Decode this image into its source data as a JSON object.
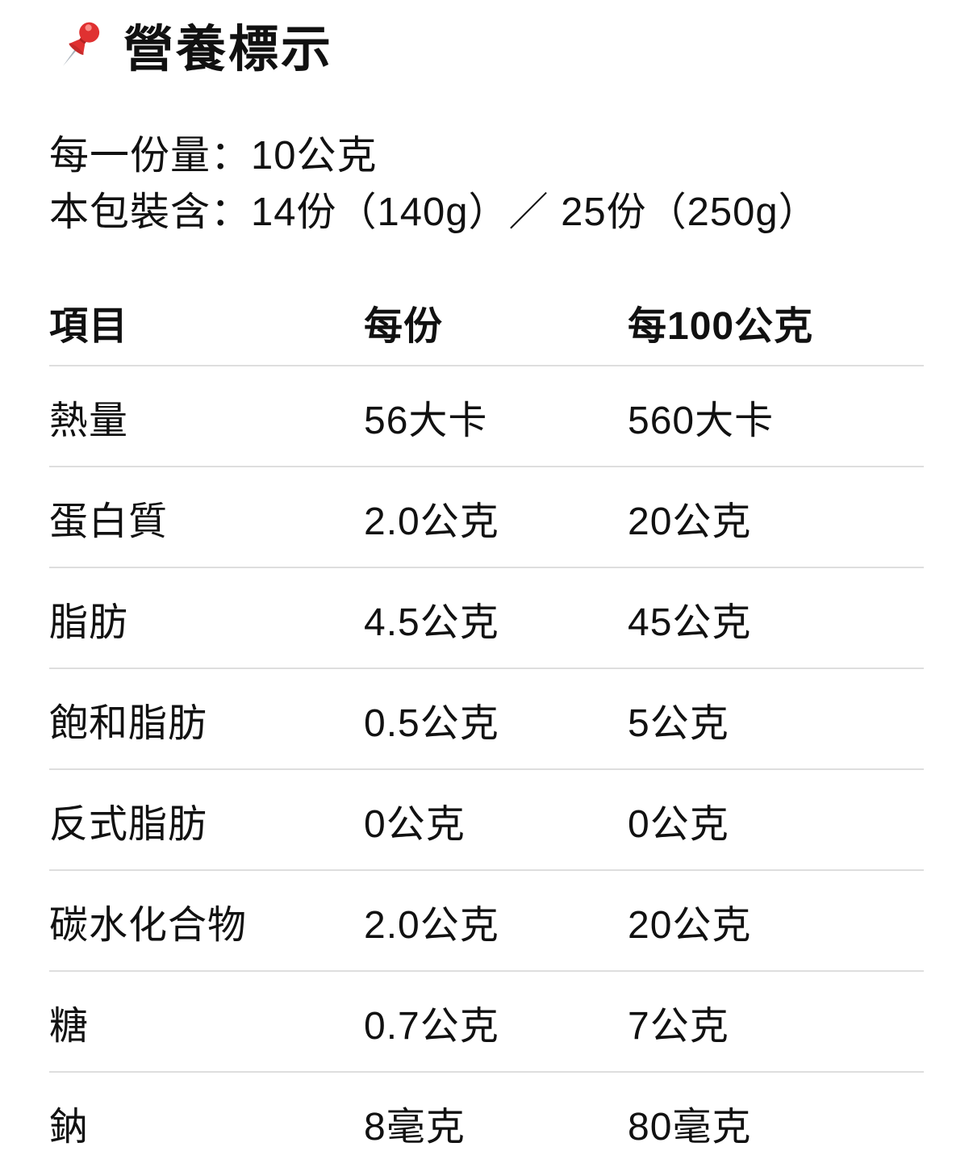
{
  "header": {
    "icon": "pushpin-icon",
    "title": "營養標示"
  },
  "serving_info": {
    "lines": [
      "每一份量：10公克",
      "本包裝含：14份（140g）／ 25份（250g）"
    ]
  },
  "table": {
    "columns": [
      "項目",
      "每份",
      "每100公克"
    ],
    "rows": [
      [
        "熱量",
        "56大卡",
        "560大卡"
      ],
      [
        "蛋白質",
        "2.0公克",
        "20公克"
      ],
      [
        "脂肪",
        "4.5公克",
        "45公克"
      ],
      [
        "飽和脂肪",
        "0.5公克",
        "5公克"
      ],
      [
        "反式脂肪",
        "0公克",
        "0公克"
      ],
      [
        "碳水化合物",
        "2.0公克",
        "20公克"
      ],
      [
        "糖",
        "0.7公克",
        "7公克"
      ],
      [
        "鈉",
        "8毫克",
        "80毫克"
      ]
    ]
  },
  "colors": {
    "text": "#111111",
    "background": "#ffffff",
    "divider": "#dedede",
    "pin_red": "#e03131",
    "pin_red_dark": "#b32222",
    "pin_needle": "#aab3bb"
  }
}
